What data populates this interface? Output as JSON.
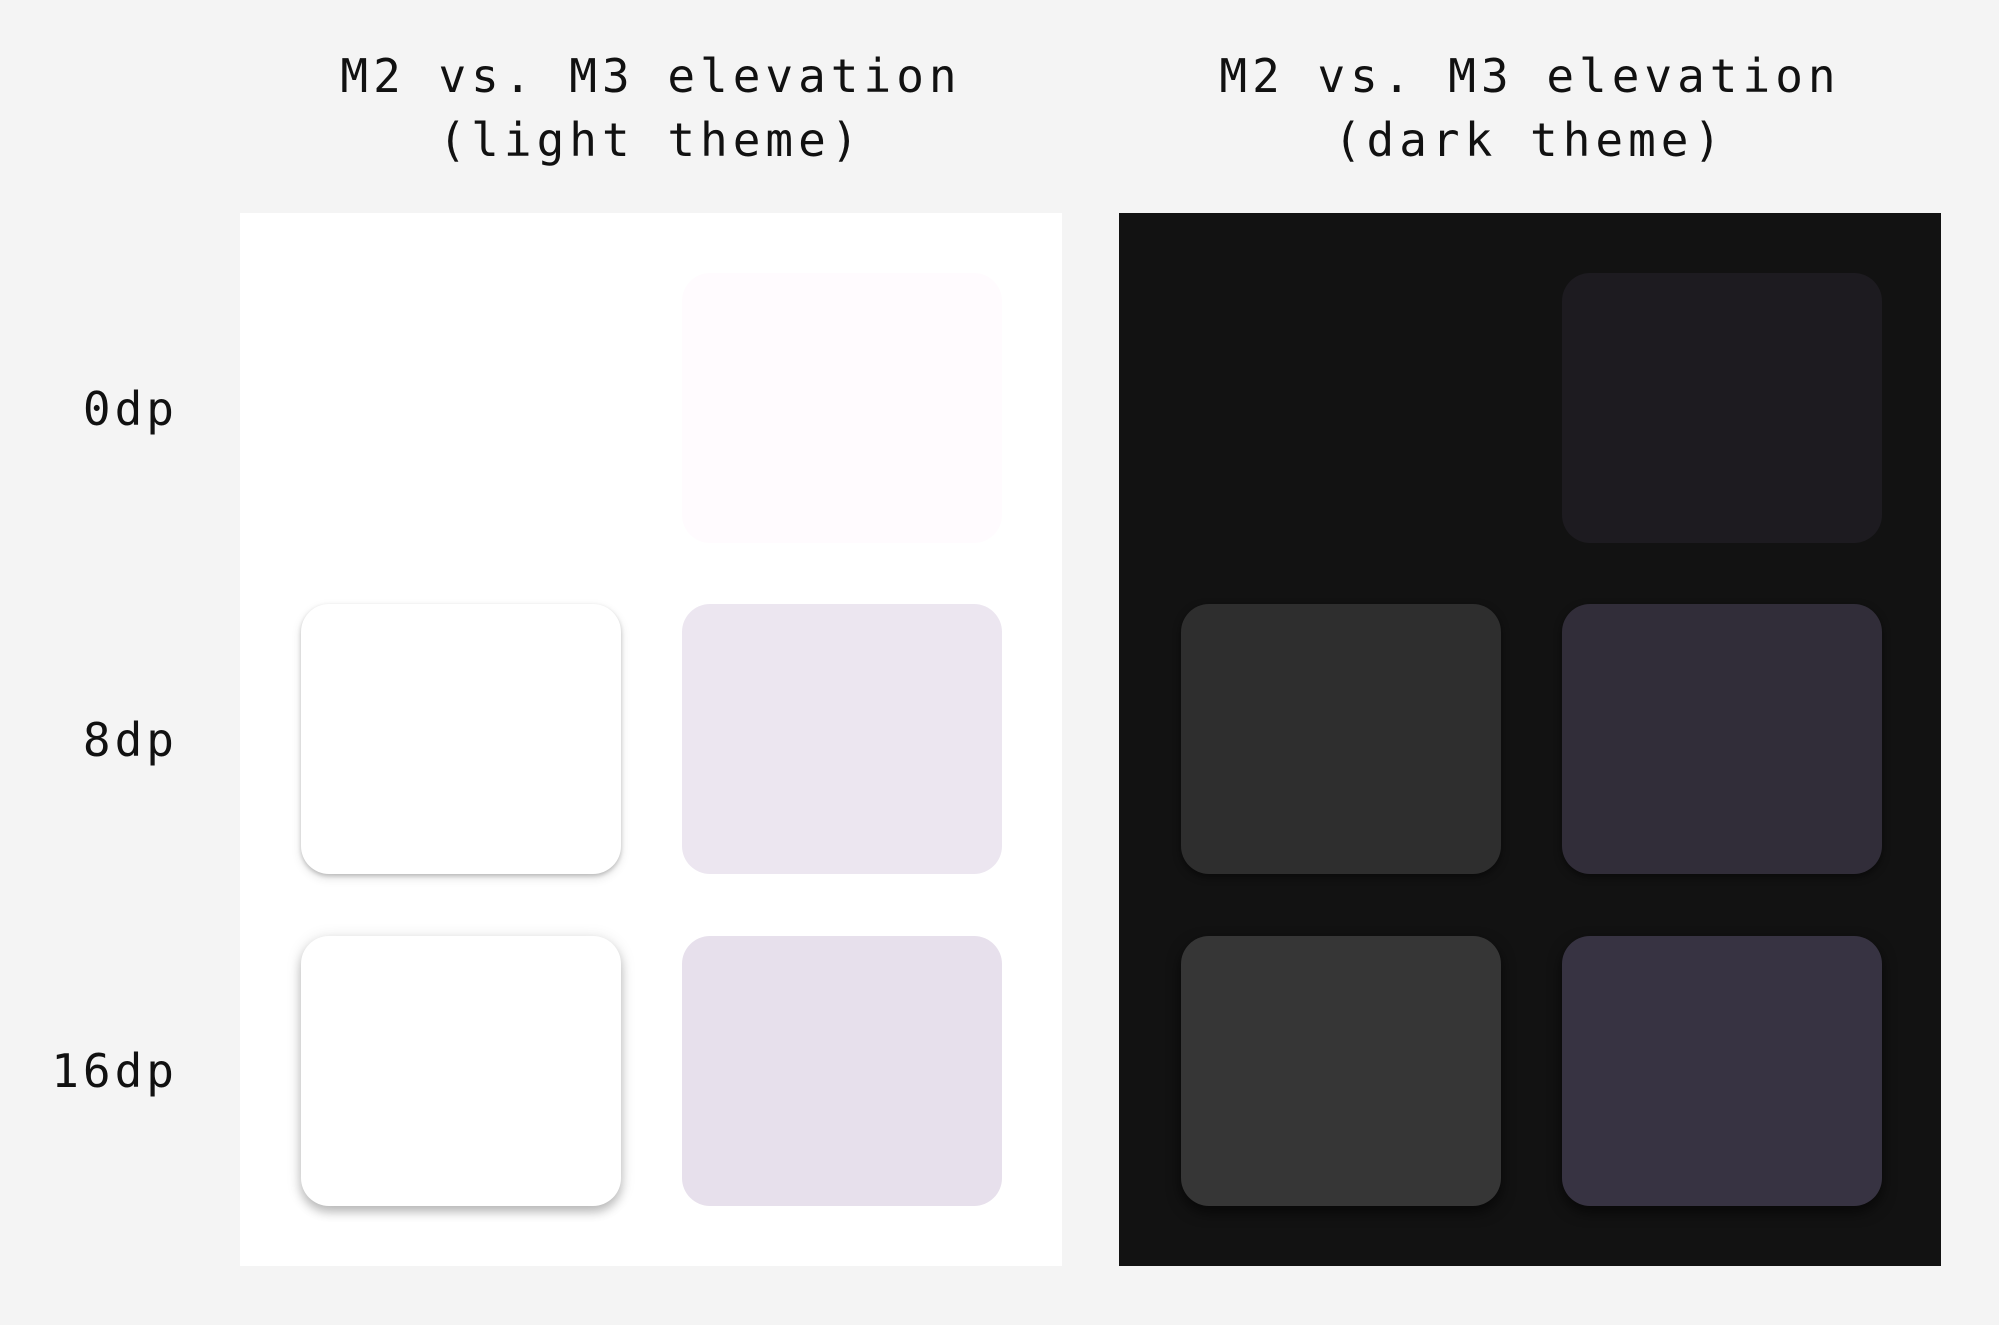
{
  "titles": {
    "light": {
      "line1": "M2 vs. M3 elevation",
      "line2": "(light theme)"
    },
    "dark": {
      "line1": "M2 vs. M3 elevation",
      "line2": "(dark theme)"
    }
  },
  "rows": [
    {
      "label": "0dp"
    },
    {
      "label": "8dp"
    },
    {
      "label": "16dp"
    }
  ],
  "colors": {
    "page_background": "#f4f4f4",
    "light_panel": "#ffffff",
    "dark_panel": "#121212",
    "light_m2": [
      "none",
      "#ffffff",
      "#ffffff"
    ],
    "light_m3": [
      "#fffbfe",
      "#ece6f0",
      "#e7e0ec"
    ],
    "dark_m2": [
      "none",
      "#2e2e2e",
      "#363636"
    ],
    "dark_m3": [
      "#1d1b20",
      "#312d39",
      "#373342"
    ]
  }
}
